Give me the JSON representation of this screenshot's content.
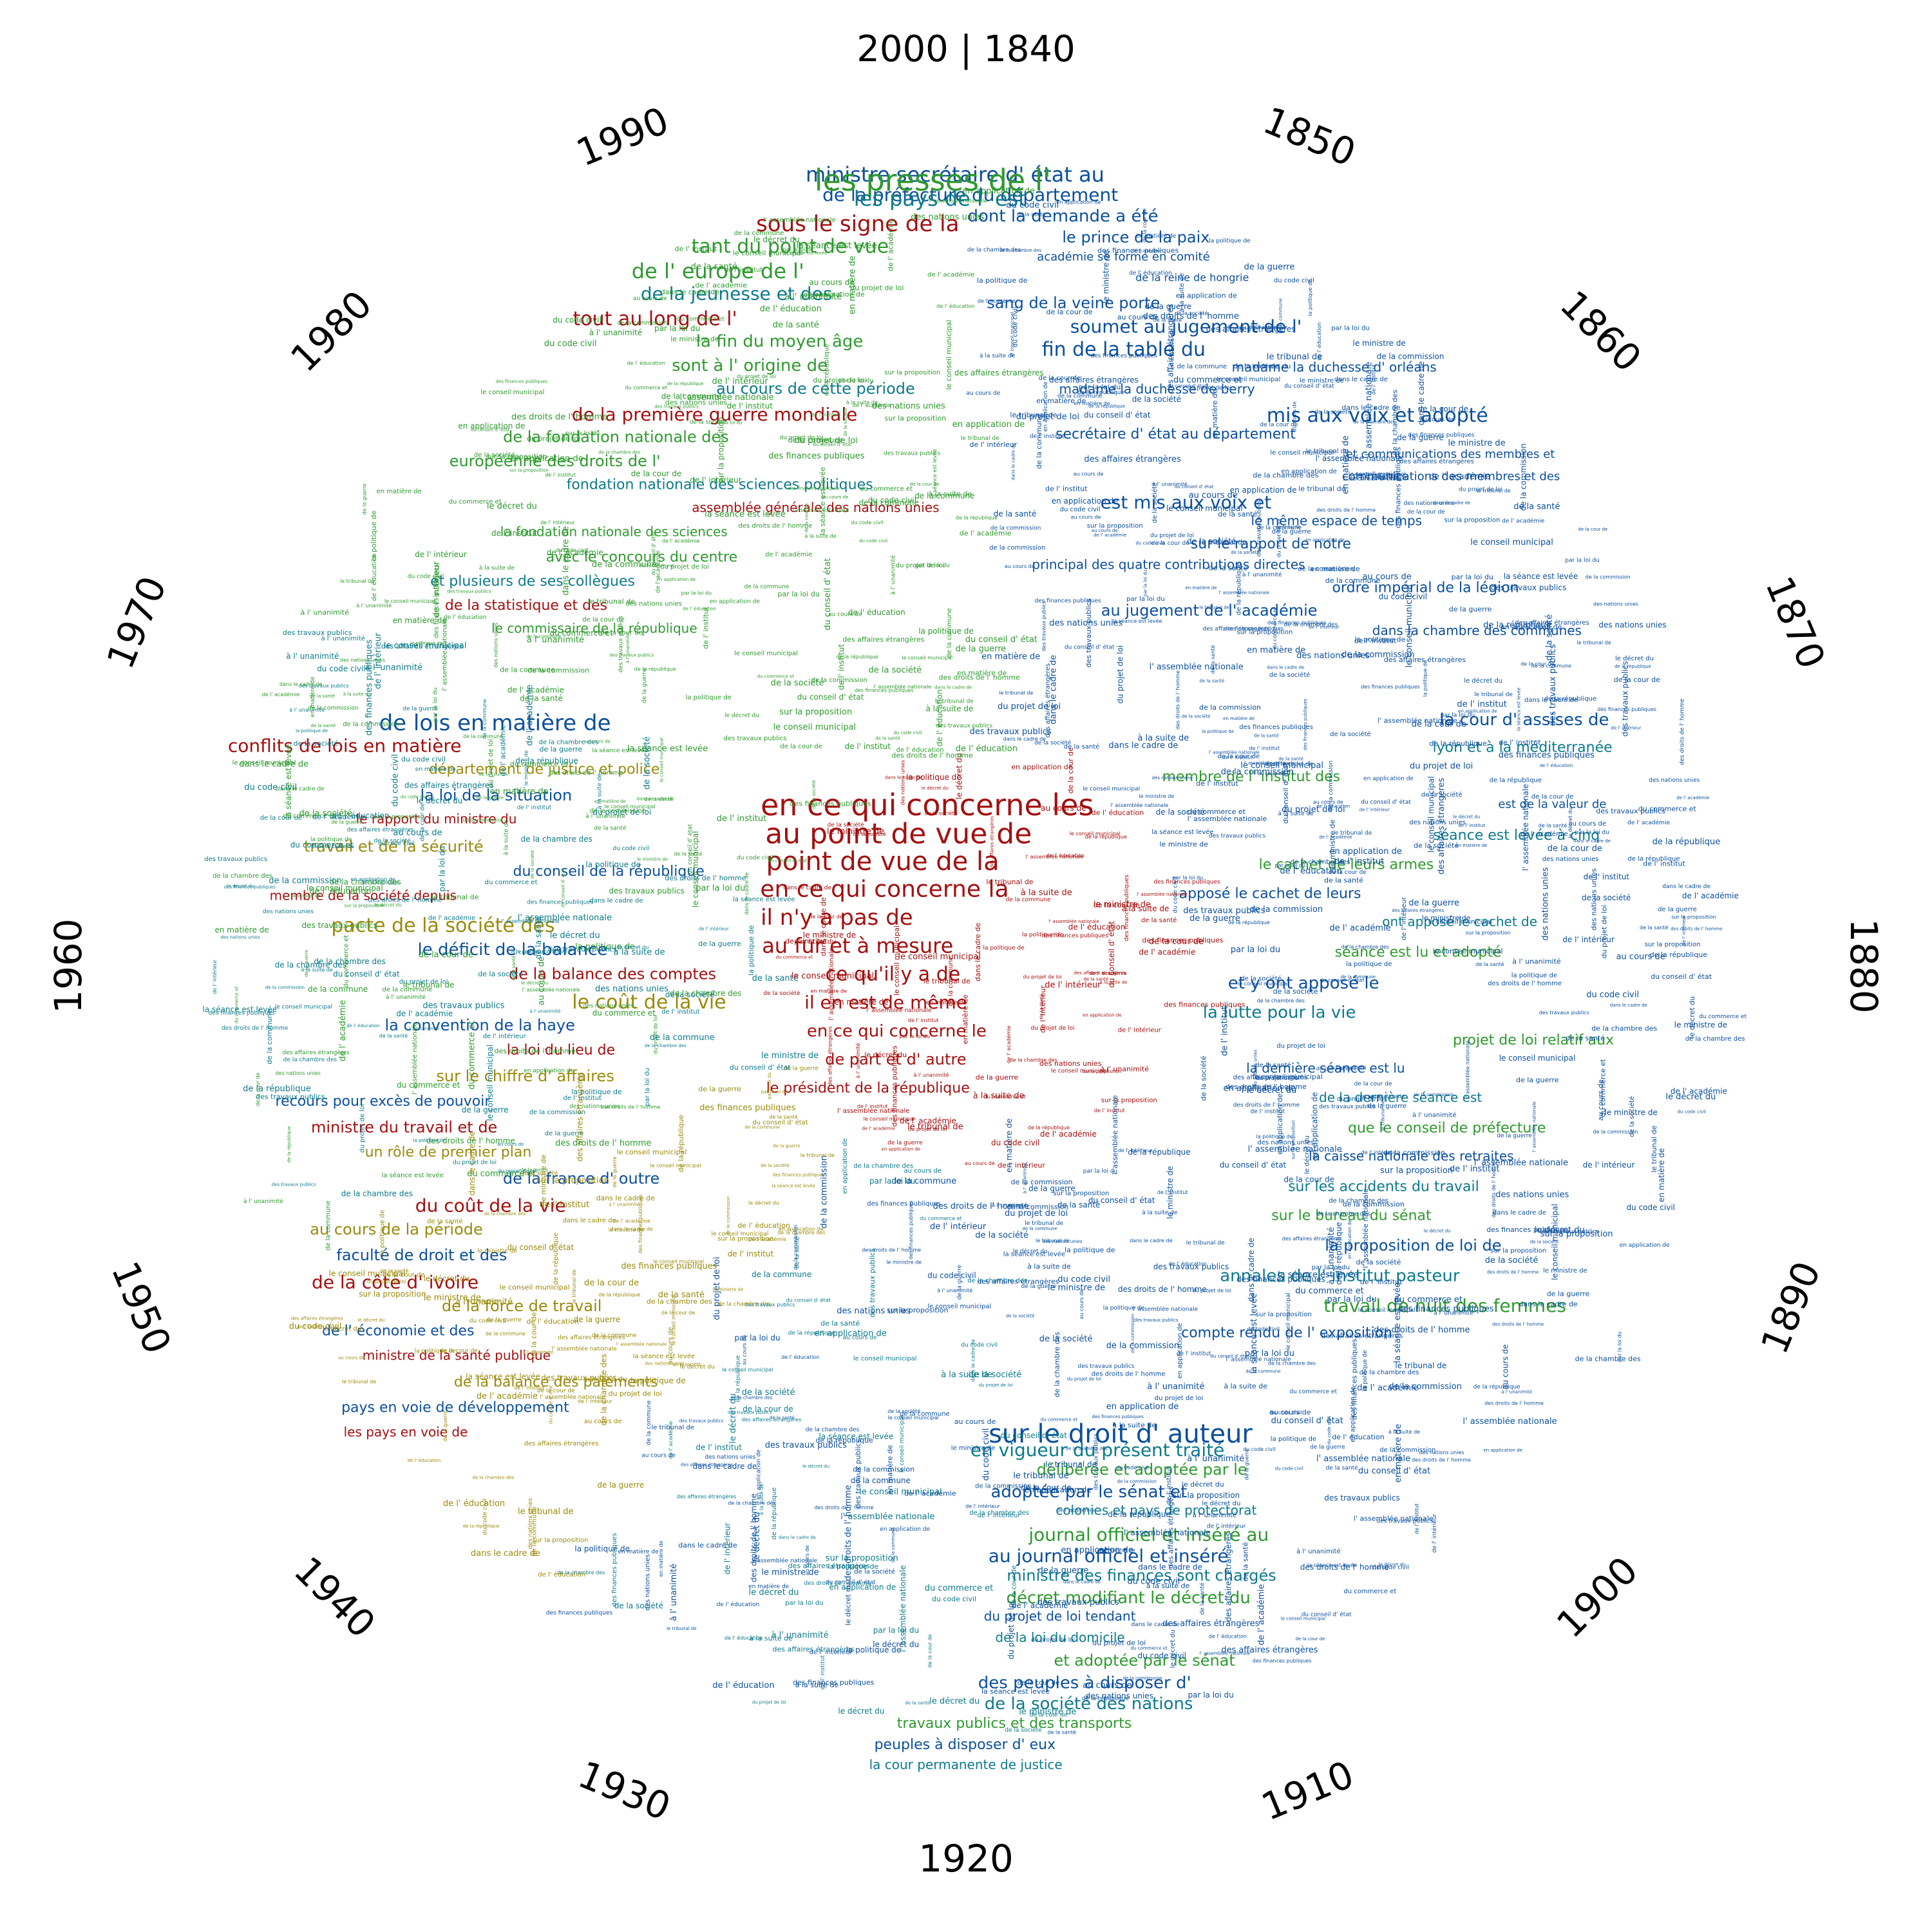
{
  "top_label": "2000 | 1840",
  "year_labels": [
    "1850",
    "1860",
    "1870",
    "1880",
    "1890",
    "1900",
    "1910",
    "1920",
    "1930",
    "1940",
    "1950",
    "1960",
    "1970",
    "1980",
    "1990"
  ],
  "colors": {
    "blue": "#0b4f9c",
    "teal": "#0c7a8c",
    "green": "#2e9a2e",
    "olive": "#9a8a0c",
    "red": "#a40f0f"
  },
  "phrases": {
    "center": [
      "en ce qui concerne les",
      "au point de vue de",
      "point de vue de la",
      "en ce qui concerne la",
      "il n'y a pas de",
      "au fur et à mesure",
      "ce qu'il y a de",
      "il en est de même",
      "en ce qui concerne le",
      "de part et d' autre",
      "le président de la république"
    ],
    "right_top": [
      "ministre secrétaire d' état au",
      "de la préfecture du département",
      "dont la demande a été",
      "le prince de la paix",
      "académie se forme en comité",
      "de la reine de hongrie",
      "sang de la veine porte",
      "soumet au jugement de l'",
      "fin de la table du",
      "madame la duchesse d' orléans",
      "madame la duchesse de berry",
      "mis aux voix et adopté",
      "secrétaire d' état au département",
      "et communications des membres et",
      "communications des membres et des",
      "est mis aux voix et",
      "le même espace de temps",
      "sur le rapport de notre",
      "principal des quatre contributions directes",
      "ordre impérial de la légion",
      "au jugement de l' académie",
      "dans la chambre des communes"
    ],
    "right": [
      "la cour d' assises de",
      "lyon et à la méditerranée",
      "membre de l' institut des",
      "est de la valeur de",
      "séance est levée à cinq",
      "le cachet de leurs armes",
      "apposé le cachet de leurs",
      "ont apposé le cachet de",
      "séance est lu et adopté",
      "et y ont apposé le",
      "la lutte pour la vie",
      "projet de loi relatif aux",
      "la dernière séance est lu",
      "de la dernière séance est",
      "que le conseil de préfecture",
      "la caisse nationale des retraites",
      "sur les accidents du travail",
      "sur le bureau du sénat",
      "la proposition de loi de",
      "annales de l' institut pasteur",
      "travail de nuit des femmes",
      "compte rendu de l' exposition"
    ],
    "bottom": [
      "sur le droit d' auteur",
      "en vigueur du présent traité",
      "délibérée et adoptée par le",
      "adoptée par le sénat et",
      "colonies et pays de protectorat",
      "journal officiel et inséré au",
      "au journal officiel et inséré",
      "ministre des finances sont chargés",
      "décret modifiant le décret du",
      "du projet de loi tendant",
      "de la loi du domicile",
      "et adoptée par le sénat",
      "des peuples à disposer d'",
      "de la société des nations",
      "travaux publics et des transports",
      "peuples à disposer d' eux",
      "la cour permanente de justice"
    ],
    "left": [
      "de lois en matière de",
      "conflits de lois en matière",
      "département de justice et police",
      "la loi de la situation",
      "le rapport du ministre du",
      "travail et de la sécurité",
      "du conseil de la république",
      "membre de la société depuis",
      "pacte de la société des",
      "le déficit de la balance",
      "de la balance des comptes",
      "le coût de la vie",
      "la convention de la haye",
      "la loi du lieu de",
      "sur le chiffre d' affaires",
      "recours pour excès de pouvoir",
      "ministre du travail et de",
      "un rôle de premier plan",
      "de la france d' outre",
      "du coût de la vie",
      "au cours de la période",
      "faculté de droit et des",
      "de la côte d' ivoire",
      "de la force de travail",
      "de l' économie et des",
      "ministre de la santé publique",
      "de la balance des paiements",
      "pays en voie de développement",
      "les pays en voie de"
    ],
    "top_left": [
      "les presses de l'",
      "les pays de l' est",
      "sous le signe de la",
      "tant du point de vue",
      "de l' europe de l'",
      "de la jeunesse et des",
      "tout au long de l'",
      "la fin du moyen âge",
      "sont à l' origine de",
      "au cours de cette période",
      "de la première guerre mondiale",
      "de la fondation nationale des",
      "européenne des droits de l'",
      "fondation nationale des sciences politiques",
      "assemblée générale des nations unies",
      "la fondation nationale des sciences",
      "avec le concours du centre",
      "et plusieurs de ses collègues",
      "de la statistique et des",
      "le commissaire de la république"
    ],
    "filler": [
      "de la société",
      "de la république",
      "au cours de",
      "le ministre de",
      "des nations unies",
      "de la commission",
      "du conseil d' état",
      "par la loi du",
      "à la suite de",
      "dans le cadre de",
      "de l' académie",
      "sur la proposition",
      "du code civil",
      "de la cour de",
      "en matière de",
      "le conseil municipal",
      "de la chambre des",
      "l' assemblée nationale",
      "du projet de loi",
      "la séance est levée",
      "de l' institut",
      "le décret du",
      "à l' unanimité",
      "en application de",
      "des affaires étrangères",
      "de la commune",
      "le tribunal de",
      "des travaux publics",
      "de la guerre",
      "du commerce et",
      "de l' intérieur",
      "des finances publiques",
      "la politique de",
      "de la santé",
      "de l' éducation",
      "des droits de l' homme"
    ]
  }
}
